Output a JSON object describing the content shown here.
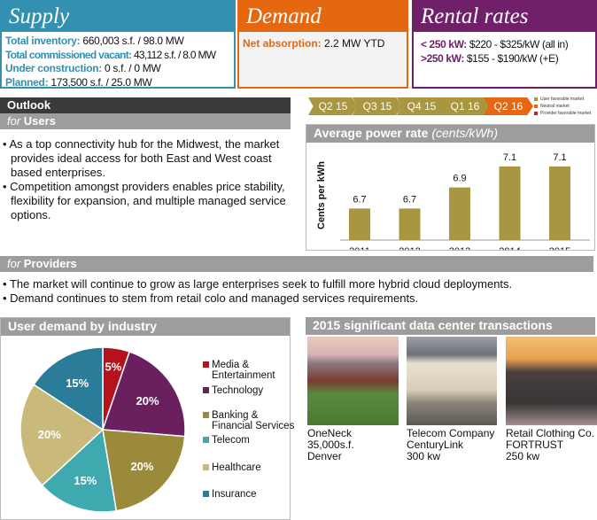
{
  "supply": {
    "title": "Supply",
    "rows": [
      {
        "label": "Total inventory:",
        "value": "660,003 s.f. / 98.0 MW"
      },
      {
        "label": "Total commissioned vacant:",
        "value": "43,112 s.f. / 8.0 MW"
      },
      {
        "label": "Under construction:",
        "value": "0 s.f. / 0 MW"
      },
      {
        "label": "Planned:",
        "value": "173,500 s.f. / 25.0 MW"
      }
    ]
  },
  "demand": {
    "title": "Demand",
    "rows": [
      {
        "label": "Net absorption:",
        "value": "2.2 MW YTD"
      }
    ]
  },
  "rental": {
    "title": "Rental rates",
    "rows": [
      {
        "label": "< 250 kW:",
        "value": "$220 - $325/kW (all in)"
      },
      {
        "label": ">250 kW:",
        "value": "$155 - $190/kW (+E)"
      }
    ]
  },
  "outlook": {
    "title": "Outlook",
    "users_for": "for",
    "users_label": "Users",
    "users_bullets": [
      "As a top connectivity hub for the Midwest, the market provides ideal access for both East and West coast based enterprises.",
      "Competition amongst providers enables price stability, flexibility for expansion, and multiple managed service options."
    ],
    "providers_for": "for",
    "providers_label": "Providers",
    "providers_bullets": [
      "The market will continue to grow as large enterprises seek to fulfill more hybrid cloud deployments.",
      "Demand continues to stem from retail colo and managed services requirements."
    ]
  },
  "quarters": [
    {
      "label": "Q2 15",
      "status": "user"
    },
    {
      "label": "Q3 15",
      "status": "user"
    },
    {
      "label": "Q4 15",
      "status": "user"
    },
    {
      "label": "Q1 16",
      "status": "user"
    },
    {
      "label": "Q2 16",
      "status": "neutral"
    }
  ],
  "market_legend": [
    {
      "label": "User favorable market",
      "color": "#a89640"
    },
    {
      "label": "Neutral market",
      "color": "#e5670f"
    },
    {
      "label": "Provider favorable market",
      "color": "#c0202a"
    }
  ],
  "chart_data": [
    {
      "type": "bar",
      "title": "Average power rate",
      "title_unit": "(cents/kWh)",
      "ylabel": "Cents per kWh",
      "categories": [
        "2011",
        "2012",
        "2013",
        "2014",
        "2015"
      ],
      "values": [
        6.7,
        6.7,
        6.9,
        7.1,
        7.1
      ],
      "data_labels": [
        "6.7",
        "6.7",
        "6.9",
        "7.1",
        "7.1"
      ],
      "ylim": [
        6.4,
        7.2
      ],
      "grid": false,
      "color": "#a89640"
    },
    {
      "type": "pie",
      "title": "User demand by industry",
      "legend_position": "right",
      "slices": [
        {
          "name": "Media & Entertainment",
          "value": 5,
          "label": "5%",
          "color": "#b5121b"
        },
        {
          "name": "Technology",
          "value": 20,
          "label": "20%",
          "color": "#6a1f5e"
        },
        {
          "name": "Banking & Financial Services",
          "value": 20,
          "label": "20%",
          "color": "#9a8a3a"
        },
        {
          "name": "Telecom",
          "value": 15,
          "label": "15%",
          "color": "#3fa9b0"
        },
        {
          "name": "Healthcare",
          "value": 20,
          "label": "20%",
          "color": "#c9b97a"
        },
        {
          "name": "Insurance",
          "value": 15,
          "label": "15%",
          "color": "#2b7c99"
        }
      ]
    }
  ],
  "legend_lines": [
    [
      "Media &",
      "Entertainment"
    ],
    [
      "Technology"
    ],
    [
      "Banking &",
      "Financial Services"
    ],
    [
      "Telecom"
    ],
    [
      "Healthcare"
    ],
    [
      "Insurance"
    ]
  ],
  "transactions": {
    "title": "2015 significant data center transactions",
    "items": [
      {
        "line1": "OneNeck",
        "line2": "35,000s.f.",
        "line3": "Denver"
      },
      {
        "line1": "Telecom Company",
        "line2": "CenturyLink",
        "line3": "300 kw"
      },
      {
        "line1": "Retail Clothing Co.",
        "line2": "FORTRUST",
        "line3": "250 kw"
      }
    ]
  },
  "colors": {
    "supply": "#3390b0",
    "demand": "#e5670f",
    "rental": "#6f2068"
  }
}
